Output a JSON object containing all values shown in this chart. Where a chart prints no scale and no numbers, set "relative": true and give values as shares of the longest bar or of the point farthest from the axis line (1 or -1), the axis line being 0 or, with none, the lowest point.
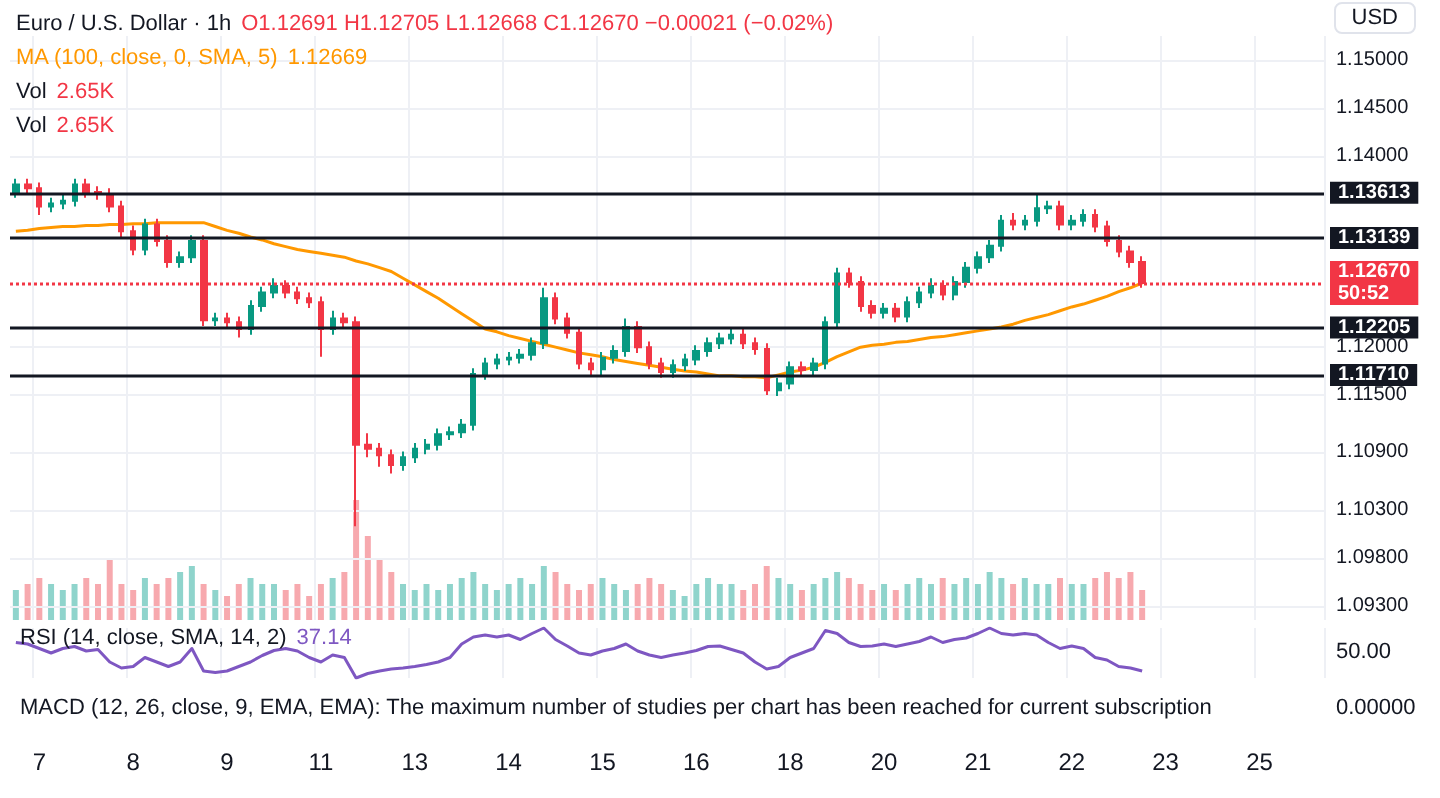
{
  "chart_data": [
    {
      "type": "candlestick",
      "title": "Euro / U.S. Dollar · 1h",
      "subtitle": "O1.12691 H1.12705 L1.12668 C1.12670 −0.00021 (−0.02%)",
      "categories": [
        null,
        null,
        "7",
        null,
        null,
        null,
        null,
        null,
        null,
        null,
        "8",
        null,
        null,
        null,
        null,
        null,
        null,
        null,
        "9",
        null,
        null,
        null,
        null,
        null,
        null,
        null,
        "11",
        null,
        null,
        null,
        null,
        null,
        null,
        null,
        "13",
        null,
        null,
        null,
        null,
        null,
        null,
        null,
        "14",
        null,
        null,
        null,
        null,
        null,
        null,
        null,
        "15",
        null,
        null,
        null,
        null,
        null,
        null,
        null,
        "16",
        null,
        null,
        null,
        null,
        null,
        null,
        null,
        "18",
        null,
        null,
        null,
        null,
        null,
        null,
        null,
        "20",
        null,
        null,
        null,
        null,
        null,
        null,
        null,
        "21",
        null,
        null,
        null,
        null,
        null,
        null,
        null,
        "22",
        null,
        null,
        null,
        null,
        null,
        null,
        null,
        "23",
        null,
        null,
        null,
        null,
        null,
        null,
        null,
        "25",
        null,
        null,
        null,
        null,
        null
      ],
      "ohlc": [
        [
          1.1362,
          1.1376,
          1.1356,
          1.137
        ],
        [
          1.137,
          1.1376,
          1.136,
          1.1366
        ],
        [
          1.1366,
          1.1372,
          1.1338,
          1.1347
        ],
        [
          1.1347,
          1.1356,
          1.1341,
          1.135
        ],
        [
          1.135,
          1.1359,
          1.1344,
          1.1353
        ],
        [
          1.1353,
          1.1376,
          1.1347,
          1.137
        ],
        [
          1.137,
          1.1376,
          1.1356,
          1.1362
        ],
        [
          1.1362,
          1.1368,
          1.1354,
          1.136
        ],
        [
          1.136,
          1.1366,
          1.1341,
          1.1347
        ],
        [
          1.1347,
          1.1353,
          1.1315,
          1.1321
        ],
        [
          1.1321,
          1.1327,
          1.1296,
          1.1302
        ],
        [
          1.1302,
          1.1334,
          1.1296,
          1.1328
        ],
        [
          1.1328,
          1.1334,
          1.1305,
          1.1311
        ],
        [
          1.1311,
          1.1317,
          1.1283,
          1.1289
        ],
        [
          1.1289,
          1.13,
          1.1283,
          1.1294
        ],
        [
          1.1294,
          1.1317,
          1.1288,
          1.1311
        ],
        [
          1.1311,
          1.1317,
          1.1222,
          1.1228
        ],
        [
          1.1228,
          1.1236,
          1.1222,
          1.123
        ],
        [
          1.123,
          1.1236,
          1.122,
          1.1226
        ],
        [
          1.1226,
          1.1232,
          1.121,
          1.1219
        ],
        [
          1.1219,
          1.1249,
          1.1213,
          1.1243
        ],
        [
          1.1243,
          1.1263,
          1.1237,
          1.1257
        ],
        [
          1.1257,
          1.1272,
          1.1251,
          1.1264
        ],
        [
          1.1264,
          1.127,
          1.1251,
          1.1257
        ],
        [
          1.1257,
          1.1263,
          1.1245,
          1.1251
        ],
        [
          1.1251,
          1.1257,
          1.1241,
          1.1247
        ],
        [
          1.1247,
          1.1253,
          1.119,
          1.1219
        ],
        [
          1.1219,
          1.1238,
          1.1213,
          1.123
        ],
        [
          1.123,
          1.1236,
          1.122,
          1.1226
        ],
        [
          1.1226,
          1.1232,
          1.1013,
          1.1098
        ],
        [
          1.1098,
          1.111,
          1.1085,
          1.1094
        ],
        [
          1.1094,
          1.11,
          1.1075,
          1.1087
        ],
        [
          1.1087,
          1.1093,
          1.1068,
          1.1077
        ],
        [
          1.1077,
          1.1091,
          1.1071,
          1.1085
        ],
        [
          1.1085,
          1.11,
          1.1079,
          1.1094
        ],
        [
          1.1094,
          1.1104,
          1.1088,
          1.1098
        ],
        [
          1.1098,
          1.1115,
          1.1092,
          1.1109
        ],
        [
          1.1109,
          1.1117,
          1.1103,
          1.1111
        ],
        [
          1.1111,
          1.1125,
          1.1105,
          1.1119
        ],
        [
          1.1119,
          1.1178,
          1.1113,
          1.1172
        ],
        [
          1.1172,
          1.1189,
          1.1166,
          1.1183
        ],
        [
          1.1183,
          1.1193,
          1.1177,
          1.1187
        ],
        [
          1.1187,
          1.1195,
          1.1181,
          1.1189
        ],
        [
          1.1189,
          1.1198,
          1.1183,
          1.1192
        ],
        [
          1.1192,
          1.121,
          1.1186,
          1.1204
        ],
        [
          1.1204,
          1.1262,
          1.1198,
          1.1251
        ],
        [
          1.1251,
          1.1257,
          1.1224,
          1.123
        ],
        [
          1.123,
          1.1236,
          1.1209,
          1.1215
        ],
        [
          1.1215,
          1.1221,
          1.1177,
          1.1183
        ],
        [
          1.1183,
          1.1189,
          1.1171,
          1.1177
        ],
        [
          1.1177,
          1.1195,
          1.1171,
          1.1189
        ],
        [
          1.1189,
          1.1202,
          1.1183,
          1.1196
        ],
        [
          1.1196,
          1.123,
          1.119,
          1.1221
        ],
        [
          1.1221,
          1.1227,
          1.1194,
          1.12
        ],
        [
          1.12,
          1.1206,
          1.1177,
          1.1183
        ],
        [
          1.1183,
          1.1189,
          1.1168,
          1.1174
        ],
        [
          1.1174,
          1.1187,
          1.1168,
          1.1181
        ],
        [
          1.1181,
          1.1193,
          1.1175,
          1.1187
        ],
        [
          1.1187,
          1.1202,
          1.1181,
          1.1196
        ],
        [
          1.1196,
          1.121,
          1.119,
          1.1204
        ],
        [
          1.1204,
          1.1215,
          1.1198,
          1.1209
        ],
        [
          1.1209,
          1.1219,
          1.1203,
          1.1213
        ],
        [
          1.1213,
          1.1219,
          1.1198,
          1.1204
        ],
        [
          1.1204,
          1.121,
          1.1192,
          1.1198
        ],
        [
          1.1198,
          1.1204,
          1.115,
          1.1155
        ],
        [
          1.1155,
          1.1168,
          1.1149,
          1.1162
        ],
        [
          1.1162,
          1.1185,
          1.1156,
          1.1179
        ],
        [
          1.1179,
          1.1185,
          1.117,
          1.1176
        ],
        [
          1.1176,
          1.1189,
          1.117,
          1.1183
        ],
        [
          1.1183,
          1.1232,
          1.1177,
          1.1226
        ],
        [
          1.1226,
          1.1283,
          1.122,
          1.1277
        ],
        [
          1.1277,
          1.1283,
          1.1262,
          1.1268
        ],
        [
          1.1268,
          1.1274,
          1.1237,
          1.1243
        ],
        [
          1.1243,
          1.1249,
          1.123,
          1.1236
        ],
        [
          1.1236,
          1.1246,
          1.123,
          1.124
        ],
        [
          1.124,
          1.1246,
          1.1226,
          1.1232
        ],
        [
          1.1232,
          1.1253,
          1.1226,
          1.1247
        ],
        [
          1.1247,
          1.1263,
          1.1241,
          1.1257
        ],
        [
          1.1257,
          1.1272,
          1.1251,
          1.1264
        ],
        [
          1.1264,
          1.127,
          1.1249,
          1.1255
        ],
        [
          1.1255,
          1.1274,
          1.1249,
          1.1268
        ],
        [
          1.1268,
          1.1289,
          1.1262,
          1.1283
        ],
        [
          1.1283,
          1.13,
          1.1277,
          1.1294
        ],
        [
          1.1294,
          1.1312,
          1.1288,
          1.1306
        ],
        [
          1.1306,
          1.1338,
          1.13,
          1.1332
        ],
        [
          1.1332,
          1.134,
          1.1322,
          1.1328
        ],
        [
          1.1328,
          1.1338,
          1.1322,
          1.1332
        ],
        [
          1.1332,
          1.136,
          1.1326,
          1.1345
        ],
        [
          1.1345,
          1.1353,
          1.1339,
          1.1347
        ],
        [
          1.1347,
          1.1353,
          1.1322,
          1.1328
        ],
        [
          1.1328,
          1.1338,
          1.1322,
          1.1332
        ],
        [
          1.1332,
          1.1344,
          1.1326,
          1.1338
        ],
        [
          1.1338,
          1.1344,
          1.132,
          1.1326
        ],
        [
          1.1326,
          1.1332,
          1.1305,
          1.1311
        ],
        [
          1.1311,
          1.1317,
          1.1294,
          1.13
        ],
        [
          1.13,
          1.1306,
          1.1283,
          1.1289
        ],
        [
          1.1289,
          1.1295,
          1.1262,
          1.1267
        ],
        null,
        null,
        null,
        null,
        null,
        null,
        null,
        null,
        null,
        null,
        null,
        null,
        null,
        null,
        null
      ],
      "colors": [
        "#089981",
        "#f23645",
        "#f23645",
        "#089981",
        "#089981",
        "#089981",
        "#f23645",
        "#f23645",
        "#f23645",
        "#f23645",
        "#f23645",
        "#089981",
        "#f23645",
        "#f23645",
        "#089981",
        "#089981",
        "#f23645",
        "#089981",
        "#f23645",
        "#f23645",
        "#089981",
        "#089981",
        "#089981",
        "#f23645",
        "#f23645",
        "#f23645",
        "#f23645",
        "#089981",
        "#f23645",
        "#f23645",
        "#f23645",
        "#f23645",
        "#f23645",
        "#089981",
        "#089981",
        "#089981",
        "#089981",
        "#089981",
        "#089981",
        "#089981",
        "#089981",
        "#089981",
        "#089981",
        "#089981",
        "#089981",
        "#089981",
        "#f23645",
        "#f23645",
        "#f23645",
        "#f23645",
        "#089981",
        "#089981",
        "#089981",
        "#f23645",
        "#f23645",
        "#f23645",
        "#089981",
        "#089981",
        "#089981",
        "#089981",
        "#089981",
        "#089981",
        "#f23645",
        "#f23645",
        "#f23645",
        "#089981",
        "#089981",
        "#f23645",
        "#089981",
        "#089981",
        "#089981",
        "#f23645",
        "#f23645",
        "#f23645",
        "#089981",
        "#f23645",
        "#089981",
        "#089981",
        "#089981",
        "#f23645",
        "#089981",
        "#089981",
        "#089981",
        "#089981",
        "#089981",
        "#f23645",
        "#089981",
        "#089981",
        "#089981",
        "#f23645",
        "#089981",
        "#089981",
        "#f23645",
        "#f23645",
        "#f23645",
        "#f23645",
        "#f23645",
        null,
        null,
        null,
        null,
        null,
        null,
        null,
        null,
        null,
        null,
        null,
        null,
        null,
        null,
        null
      ],
      "series": [
        {
          "type": "line",
          "name": "MA (100, close, 0, SMA, 5)",
          "color": "#ff9800",
          "values": [
            1.1321,
            1.1322,
            1.1324,
            1.1325,
            1.1326,
            1.1326,
            1.1327,
            1.1327,
            1.1328,
            1.1328,
            1.1329,
            1.1329,
            1.133,
            1.133,
            1.133,
            1.133,
            1.133,
            1.1326,
            1.1322,
            1.1319,
            1.1315,
            1.1312,
            1.1308,
            1.1305,
            1.1302,
            1.13,
            1.1298,
            1.1296,
            1.1294,
            1.129,
            1.1287,
            1.1283,
            1.1279,
            1.1272,
            1.1265,
            1.1258,
            1.1251,
            1.1243,
            1.1235,
            1.1227,
            1.1219,
            1.1216,
            1.1212,
            1.1209,
            1.1206,
            1.1203,
            1.12,
            1.1197,
            1.1194,
            1.1192,
            1.119,
            1.1187,
            1.1185,
            1.1183,
            1.1181,
            1.1179,
            1.1177,
            1.1175,
            1.1174,
            1.1172,
            1.117,
            1.117,
            1.1169,
            1.1169,
            1.1168,
            1.1171,
            1.1174,
            1.1176,
            1.1179,
            1.1184,
            1.119,
            1.1195,
            1.12,
            1.1202,
            1.1203,
            1.1205,
            1.1206,
            1.1208,
            1.121,
            1.1211,
            1.1213,
            1.1215,
            1.1217,
            1.1219,
            1.1221,
            1.1224,
            1.1228,
            1.1231,
            1.1234,
            1.1238,
            1.1242,
            1.1245,
            1.1249,
            1.1253,
            1.1258,
            1.1262,
            1.1267,
            null,
            null,
            null,
            null,
            null,
            null,
            null,
            null,
            null,
            null,
            null,
            null,
            null,
            null,
            null
          ]
        }
      ],
      "ylim": [
        1.0915,
        1.1525
      ],
      "yticks": [
        {
          "value": 1.15,
          "label": "1.15000"
        },
        {
          "value": 1.145,
          "label": "1.14500"
        },
        {
          "value": 1.14,
          "label": "1.14000"
        },
        {
          "value": 1.12,
          "label": "1.12000"
        },
        {
          "value": 1.115,
          "label": "1.11500"
        },
        {
          "value": 1.109,
          "label": "1.10900"
        },
        {
          "value": 1.103,
          "label": "1.10300"
        },
        {
          "value": 1.098,
          "label": "1.09800"
        },
        {
          "value": 1.093,
          "label": "1.09300"
        }
      ],
      "ref_lines": [
        {
          "axis": "y",
          "value": 1.13613,
          "label": "1.13613",
          "color": "#131722",
          "line_style": "solid"
        },
        {
          "axis": "y",
          "value": 1.13139,
          "label": "1.13139",
          "color": "#131722",
          "line_style": "solid"
        },
        {
          "axis": "y",
          "value": 1.12205,
          "label": "1.12205",
          "color": "#131722",
          "line_style": "solid"
        },
        {
          "axis": "y",
          "value": 1.1171,
          "label": "1.11710",
          "color": "#131722",
          "line_style": "solid"
        },
        {
          "axis": "y",
          "value": 1.1267,
          "label": "1.12670",
          "color": "#f23645",
          "line_style": "dotted"
        }
      ],
      "annotations": [
        "1.12669",
        "USD",
        "50:52"
      ],
      "grid": true,
      "legend": "top left",
      "tick_labels": "y"
    },
    {
      "type": "bar",
      "relative": true,
      "categories": [
        null,
        null,
        "7",
        null,
        null,
        null,
        null,
        null,
        null,
        null,
        "8",
        null,
        null,
        null,
        null,
        null,
        null,
        null,
        "9",
        null,
        null,
        null,
        null,
        null,
        null,
        null,
        "11",
        null,
        null,
        null,
        null,
        null,
        null,
        null,
        "13",
        null,
        null,
        null,
        null,
        null,
        null,
        null,
        "14",
        null,
        null,
        null,
        null,
        null,
        null,
        null,
        "15",
        null,
        null,
        null,
        null,
        null,
        null,
        null,
        "16",
        null,
        null,
        null,
        null,
        null,
        null,
        null,
        "18",
        null,
        null,
        null,
        null,
        null,
        null,
        null,
        "20",
        null,
        null,
        null,
        null,
        null,
        null,
        null,
        "21",
        null,
        null,
        null,
        null,
        null,
        null,
        null,
        "22",
        null,
        null,
        null,
        null,
        null,
        null,
        null,
        "23",
        null,
        null,
        null,
        null,
        null,
        null,
        null,
        "25",
        null,
        null,
        null,
        null,
        null
      ],
      "values": [
        0.25,
        0.3,
        0.35,
        0.3,
        0.25,
        0.3,
        0.35,
        0.3,
        0.5,
        0.3,
        0.25,
        0.35,
        0.3,
        0.35,
        0.4,
        0.45,
        0.3,
        0.25,
        0.2,
        0.3,
        0.35,
        0.3,
        0.3,
        0.25,
        0.3,
        0.2,
        0.3,
        0.35,
        0.4,
        1,
        0.7,
        0.5,
        0.4,
        0.3,
        0.25,
        0.3,
        0.25,
        0.3,
        0.35,
        0.4,
        0.3,
        0.25,
        0.3,
        0.35,
        0.3,
        0.45,
        0.4,
        0.3,
        0.25,
        0.3,
        0.35,
        0.3,
        0.25,
        0.3,
        0.35,
        0.3,
        0.25,
        0.2,
        0.3,
        0.35,
        0.3,
        0.3,
        0.25,
        0.3,
        0.45,
        0.35,
        0.3,
        0.25,
        0.3,
        0.35,
        0.4,
        0.35,
        0.3,
        0.25,
        0.3,
        0.25,
        0.3,
        0.35,
        0.3,
        0.35,
        0.3,
        0.35,
        0.3,
        0.4,
        0.35,
        0.3,
        0.35,
        0.3,
        0.3,
        0.35,
        0.3,
        0.3,
        0.35,
        0.4,
        0.35,
        0.4,
        0.25,
        null,
        null,
        null,
        null,
        null,
        null,
        null,
        null,
        null,
        null,
        null,
        null,
        null,
        null,
        null
      ],
      "colors": [
        "#8fd4cc",
        "#f7a9ae",
        "#f7a9ae",
        "#8fd4cc",
        "#8fd4cc",
        "#8fd4cc",
        "#f7a9ae",
        "#f7a9ae",
        "#f7a9ae",
        "#f7a9ae",
        "#f7a9ae",
        "#8fd4cc",
        "#f7a9ae",
        "#f7a9ae",
        "#8fd4cc",
        "#8fd4cc",
        "#f7a9ae",
        "#8fd4cc",
        "#f7a9ae",
        "#f7a9ae",
        "#8fd4cc",
        "#8fd4cc",
        "#8fd4cc",
        "#f7a9ae",
        "#f7a9ae",
        "#f7a9ae",
        "#f7a9ae",
        "#8fd4cc",
        "#f7a9ae",
        "#f7a9ae",
        "#f7a9ae",
        "#f7a9ae",
        "#f7a9ae",
        "#8fd4cc",
        "#8fd4cc",
        "#8fd4cc",
        "#8fd4cc",
        "#8fd4cc",
        "#8fd4cc",
        "#8fd4cc",
        "#8fd4cc",
        "#8fd4cc",
        "#8fd4cc",
        "#8fd4cc",
        "#8fd4cc",
        "#8fd4cc",
        "#f7a9ae",
        "#f7a9ae",
        "#f7a9ae",
        "#f7a9ae",
        "#8fd4cc",
        "#8fd4cc",
        "#8fd4cc",
        "#f7a9ae",
        "#f7a9ae",
        "#f7a9ae",
        "#8fd4cc",
        "#8fd4cc",
        "#8fd4cc",
        "#8fd4cc",
        "#8fd4cc",
        "#8fd4cc",
        "#f7a9ae",
        "#f7a9ae",
        "#f7a9ae",
        "#8fd4cc",
        "#8fd4cc",
        "#f7a9ae",
        "#8fd4cc",
        "#8fd4cc",
        "#8fd4cc",
        "#f7a9ae",
        "#f7a9ae",
        "#f7a9ae",
        "#8fd4cc",
        "#f7a9ae",
        "#8fd4cc",
        "#8fd4cc",
        "#8fd4cc",
        "#f7a9ae",
        "#8fd4cc",
        "#8fd4cc",
        "#8fd4cc",
        "#8fd4cc",
        "#8fd4cc",
        "#f7a9ae",
        "#8fd4cc",
        "#8fd4cc",
        "#8fd4cc",
        "#f7a9ae",
        "#8fd4cc",
        "#8fd4cc",
        "#f7a9ae",
        "#f7a9ae",
        "#f7a9ae",
        "#f7a9ae",
        "#f7a9ae",
        null,
        null,
        null,
        null,
        null,
        null,
        null,
        null,
        null,
        null,
        null,
        null,
        null,
        null,
        null
      ],
      "annotations": [
        "Vol 2.65K",
        "Vol 2.65K"
      ],
      "grid": "x",
      "tick_labels": false
    },
    {
      "type": "line",
      "relative": true,
      "categories": [
        null,
        null,
        "7",
        null,
        null,
        null,
        null,
        null,
        null,
        null,
        "8",
        null,
        null,
        null,
        null,
        null,
        null,
        null,
        "9",
        null,
        null,
        null,
        null,
        null,
        null,
        null,
        "11",
        null,
        null,
        null,
        null,
        null,
        null,
        null,
        "13",
        null,
        null,
        null,
        null,
        null,
        null,
        null,
        "14",
        null,
        null,
        null,
        null,
        null,
        null,
        null,
        "15",
        null,
        null,
        null,
        null,
        null,
        null,
        null,
        "16",
        null,
        null,
        null,
        null,
        null,
        null,
        null,
        "18",
        null,
        null,
        null,
        null,
        null,
        null,
        null,
        "20",
        null,
        null,
        null,
        null,
        null,
        null,
        null,
        "21",
        null,
        null,
        null,
        null,
        null,
        null,
        null,
        "22",
        null,
        null,
        null,
        null,
        null,
        null,
        null,
        "23",
        null,
        null,
        null,
        null,
        null,
        null,
        null,
        "25",
        null,
        null,
        null,
        null,
        null
      ],
      "series": [
        {
          "name": "RSI (14, close, SMA, 14, 2)",
          "color": "#7e57c2",
          "values": [
            0.71,
            0.68,
            0.59,
            0.5,
            0.59,
            0.63,
            0.54,
            0.57,
            0.32,
            0.2,
            0.23,
            0.41,
            0.32,
            0.23,
            0.32,
            0.59,
            0.14,
            0.11,
            0.14,
            0.23,
            0.32,
            0.45,
            0.55,
            0.59,
            0.54,
            0.41,
            0.32,
            0.46,
            0.41,
            0,
            0.09,
            0.14,
            0.18,
            0.2,
            0.23,
            0.27,
            0.32,
            0.41,
            0.68,
            0.82,
            0.86,
            0.82,
            0.86,
            0.77,
            0.89,
            1,
            0.77,
            0.64,
            0.5,
            0.46,
            0.54,
            0.59,
            0.68,
            0.54,
            0.46,
            0.41,
            0.46,
            0.5,
            0.55,
            0.63,
            0.64,
            0.57,
            0.5,
            0.32,
            0.18,
            0.23,
            0.41,
            0.5,
            0.59,
            0.95,
            0.89,
            0.71,
            0.63,
            0.64,
            0.68,
            0.63,
            0.68,
            0.73,
            0.82,
            0.71,
            0.77,
            0.8,
            0.89,
            1,
            0.89,
            0.86,
            0.89,
            0.86,
            0.71,
            0.59,
            0.64,
            0.59,
            0.41,
            0.36,
            0.23,
            0.2,
            0.14,
            null,
            null,
            null,
            null,
            null,
            null,
            null,
            null,
            null,
            null,
            null,
            null,
            null,
            null,
            null
          ]
        }
      ],
      "annotations": [
        "37.14",
        "50.00"
      ],
      "grid": "x",
      "tick_labels": "x",
      "line_style": "solid"
    },
    {
      "type": "other",
      "annotations": [
        "MACD (12, 26, close, 9, EMA, EMA): The maximum number of studies per chart has been reached for current subscription",
        "0.00000"
      ]
    }
  ]
}
